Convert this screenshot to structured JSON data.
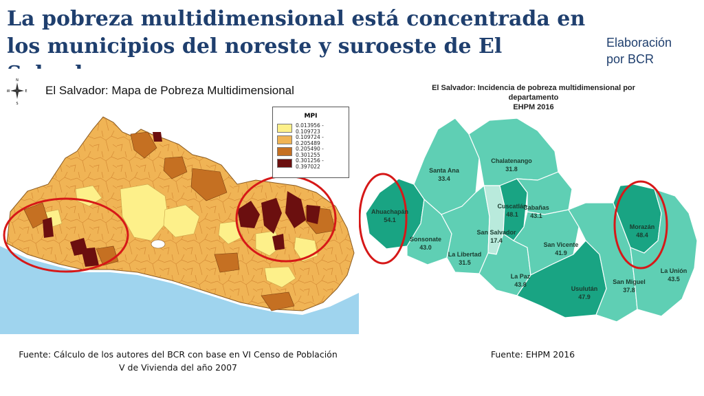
{
  "title": "La pobreza multidimensional está concentrada en los municipios del noreste y suroeste de El Salvador.",
  "credit": [
    "Elaboración",
    "por BCR"
  ],
  "left_map": {
    "title": "El Salvador: Mapa de Pobreza Multidimensional",
    "compass": {
      "n": "N",
      "s": "S",
      "e": "E",
      "w": "W"
    },
    "legend": {
      "title": "MPI",
      "items": [
        {
          "label": "0.013956 - 0.109723",
          "color": "#fdf08a"
        },
        {
          "label": "0.109724 - 0.205489",
          "color": "#f0b455"
        },
        {
          "label": "0.205490 - 0.301255",
          "color": "#c57022"
        },
        {
          "label": "0.301256 - 0.397022",
          "color": "#6b0f0f"
        }
      ]
    },
    "source": [
      "Fuente: Cálculo de los autores del BCR con base en VI Censo de Población",
      "V de Vivienda del año 2007"
    ]
  },
  "right_map": {
    "title": [
      "El Salvador: Incidencia de pobreza multidimensional por departamento",
      "EHPM 2016"
    ],
    "departments": [
      {
        "name": "Ahuachapán",
        "value": "54.1"
      },
      {
        "name": "Santa Ana",
        "value": "33.4"
      },
      {
        "name": "Sonsonate",
        "value": "43.0"
      },
      {
        "name": "Chalatenango",
        "value": "31.8"
      },
      {
        "name": "La Libertad",
        "value": "31.5"
      },
      {
        "name": "Cuscatlán",
        "value": "48.1"
      },
      {
        "name": "San Salvador",
        "value": "17.4"
      },
      {
        "name": "Cabañas",
        "value": "43.1"
      },
      {
        "name": "La Paz",
        "value": "43.8"
      },
      {
        "name": "San Vicente",
        "value": "41.9"
      },
      {
        "name": "Usulután",
        "value": "47.9"
      },
      {
        "name": "San Miguel",
        "value": "37.8"
      },
      {
        "name": "Morazán",
        "value": "48.4"
      },
      {
        "name": "La Unión",
        "value": "43.5"
      }
    ],
    "source": "Fuente: EHPM 2016"
  },
  "colors": {
    "title": "#1f3f6e",
    "sea": "#9fd4ee",
    "highlight_circle": "#d61818",
    "dept_low": "#b9eadc",
    "dept_mid": "#5fcfb4",
    "dept_high": "#19a483"
  }
}
